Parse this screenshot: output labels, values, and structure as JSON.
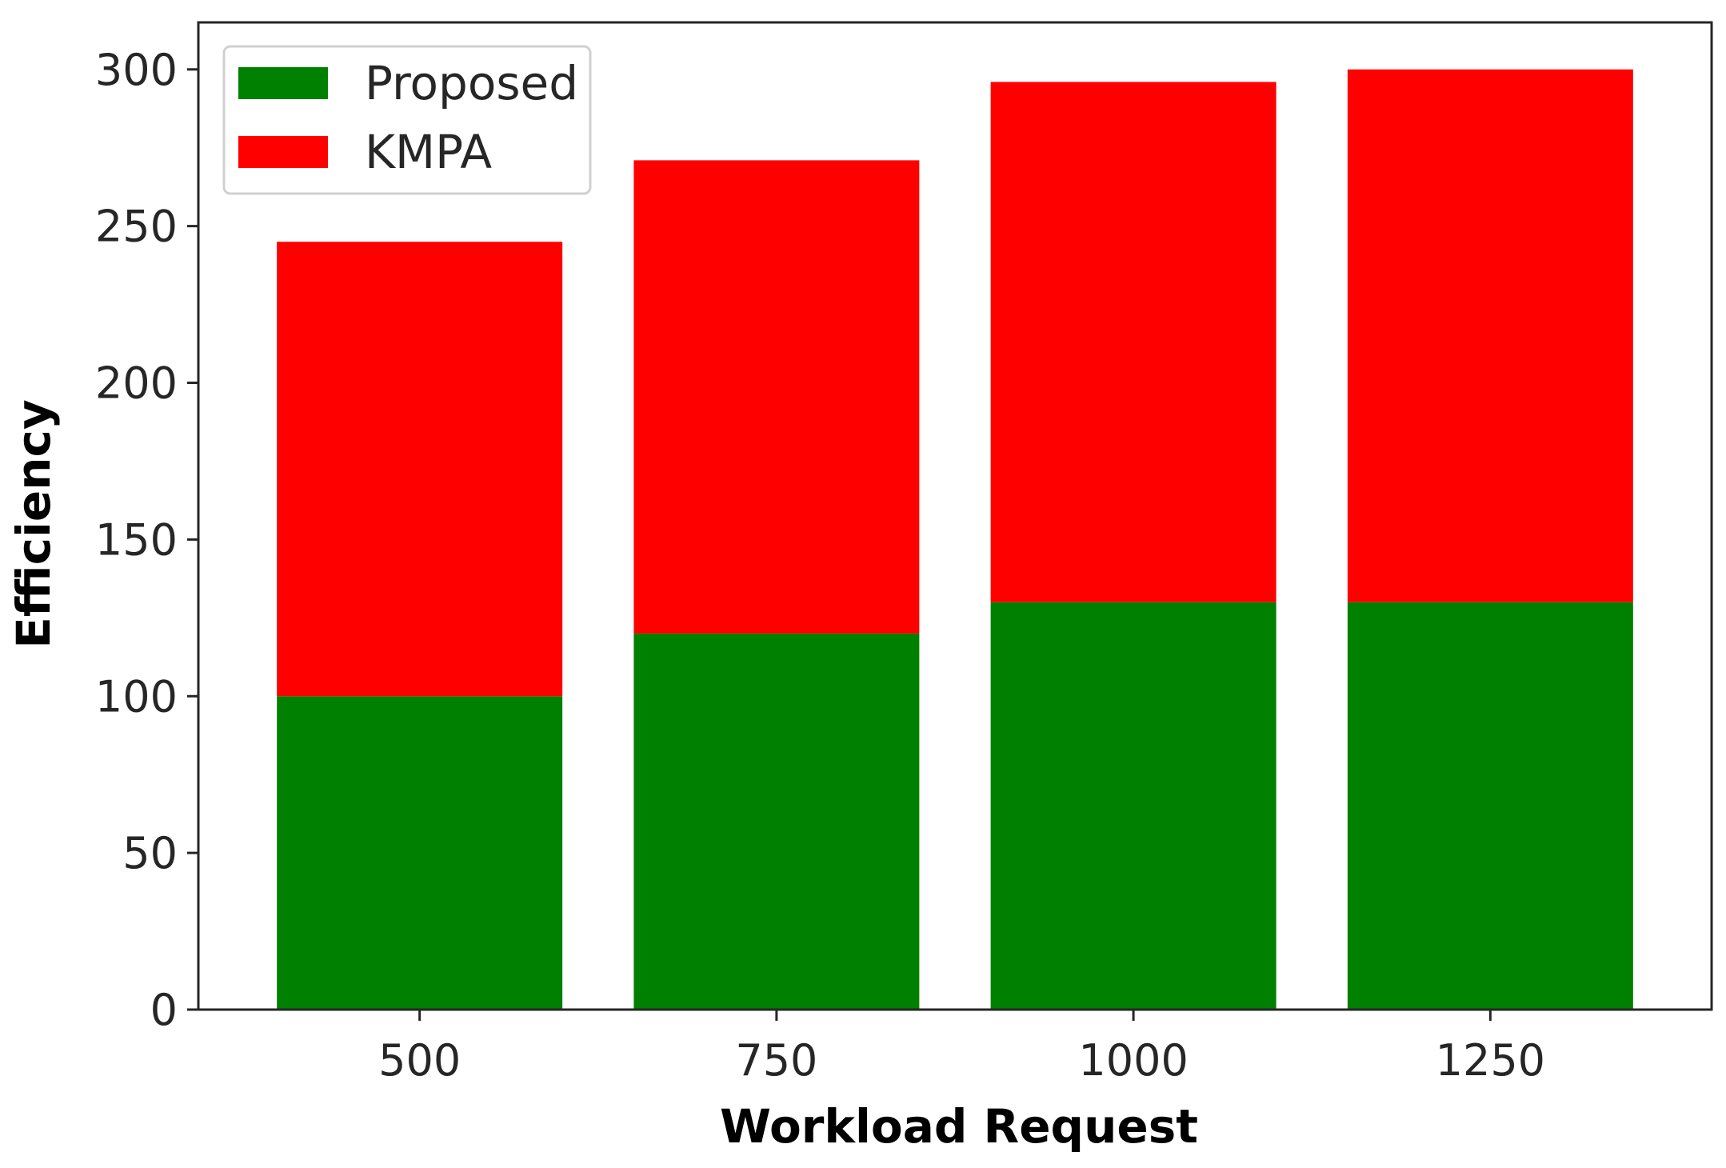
{
  "chart_data": {
    "type": "bar",
    "stacked": true,
    "categories": [
      "500",
      "750",
      "1000",
      "1250"
    ],
    "series": [
      {
        "name": "Proposed",
        "color": "#008000",
        "values": [
          100,
          120,
          130,
          130
        ]
      },
      {
        "name": "KMPA",
        "color": "#ff0000",
        "values": [
          145,
          151,
          166,
          170
        ]
      }
    ],
    "title": "",
    "xlabel": "Workload Request",
    "ylabel": "Efficiency",
    "ylim": [
      0,
      315
    ],
    "yticks": [
      0,
      50,
      100,
      150,
      200,
      250,
      300
    ],
    "grid": false,
    "legend_position": "top-left"
  }
}
